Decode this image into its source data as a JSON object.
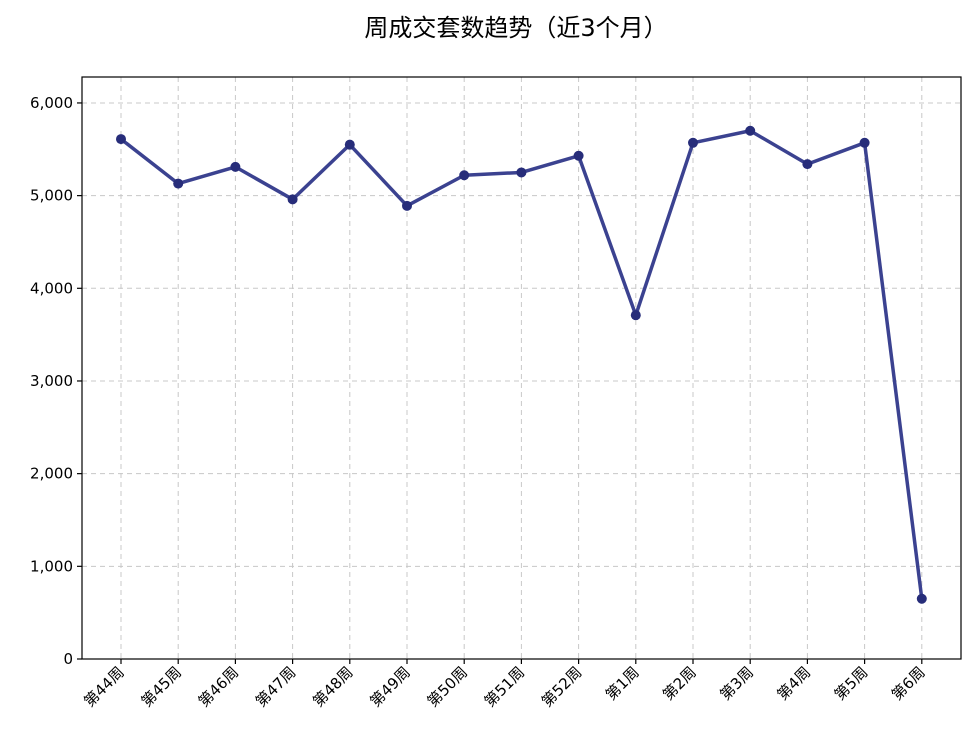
{
  "chart_data": {
    "type": "line",
    "title": "周成交套数趋势（近3个月）",
    "xlabel": "",
    "ylabel": "",
    "categories": [
      "第44周",
      "第45周",
      "第46周",
      "第47周",
      "第48周",
      "第49周",
      "第50周",
      "第51周",
      "第52周",
      "第1周",
      "第2周",
      "第3周",
      "第4周",
      "第5周",
      "第6周"
    ],
    "series": [
      {
        "values": [
          5610,
          5130,
          5310,
          4960,
          5550,
          4890,
          5220,
          5250,
          5430,
          3710,
          5570,
          5700,
          5340,
          5570,
          650
        ]
      }
    ],
    "ylim": [
      0,
      6280
    ],
    "yticks": [
      0,
      1000,
      2000,
      3000,
      4000,
      5000,
      6000
    ],
    "ytick_labels": [
      "0",
      "1,000",
      "2,000",
      "3,000",
      "4,000",
      "5,000",
      "6,000"
    ],
    "grid": true,
    "line_color": "#3b4290",
    "marker_color": "#272d7a"
  }
}
